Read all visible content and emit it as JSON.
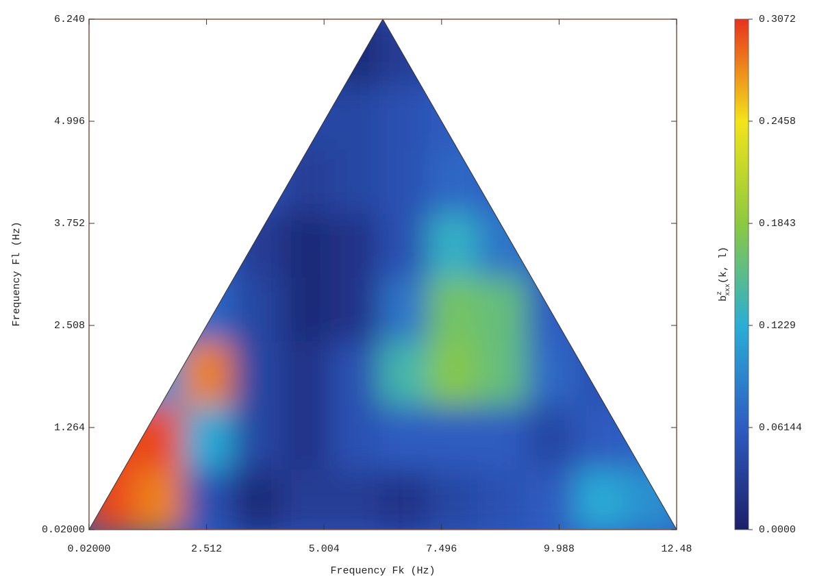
{
  "chart_data": {
    "type": "contour",
    "x_label": "Frequency Fk (Hz)",
    "y_label": "Frequency Fl (Hz)",
    "colorbar_label": {
      "base": "b",
      "sup": "z",
      "sub": "xxx",
      "args": "(k, l)"
    },
    "xlim": [
      0.02,
      12.48
    ],
    "ylim": [
      0.02,
      6.24
    ],
    "xticks": [
      {
        "value": 0.02,
        "label": "0.02000"
      },
      2.512,
      5.004,
      7.496,
      9.988,
      12.48
    ],
    "yticks": [
      {
        "value": 0.02,
        "label": "0.02000"
      },
      1.264,
      2.508,
      3.752,
      4.996,
      {
        "value": 6.24,
        "label": "6.240"
      }
    ],
    "zlim": [
      0,
      0.3072
    ],
    "zticks": [
      {
        "value": 0,
        "label": "0.0000"
      },
      0.06144,
      0.1229,
      0.1843,
      0.2458,
      0.3072
    ],
    "colormap": [
      "#1c1f6a",
      "#2e5cc2",
      "#2aaed6",
      "#8cc940",
      "#f3e41a",
      "#e8321e"
    ],
    "x": [
      0.54,
      1.58,
      2.62,
      3.66,
      4.7,
      5.74,
      6.78,
      7.82,
      8.86,
      9.9,
      10.94,
      11.98
    ],
    "y": [
      0.41,
      1.19,
      1.97,
      2.75,
      3.53,
      4.31,
      5.09,
      5.87
    ],
    "z": [
      [
        0.3,
        0.28,
        0.05,
        0.01,
        0.03,
        0.03,
        0.02,
        0.04,
        0.05,
        0.06,
        0.12,
        0.1
      ],
      [
        0.3,
        0.3,
        0.12,
        0.04,
        0.02,
        0.05,
        0.06,
        0.06,
        0.06,
        0.04,
        0.06,
        null
      ],
      [
        null,
        0.1,
        0.28,
        0.04,
        0.02,
        0.05,
        0.14,
        0.18,
        0.16,
        0.07,
        0.05,
        null
      ],
      [
        null,
        null,
        0.07,
        0.04,
        0.01,
        0.02,
        0.08,
        0.17,
        0.16,
        0.06,
        null,
        null
      ],
      [
        null,
        null,
        null,
        0.03,
        0.01,
        0.02,
        0.05,
        0.13,
        0.08,
        null,
        null,
        null
      ],
      [
        null,
        null,
        null,
        null,
        0.03,
        0.04,
        0.05,
        0.07,
        null,
        null,
        null,
        null
      ],
      [
        null,
        null,
        null,
        null,
        0.04,
        0.04,
        0.05,
        0.06,
        null,
        null,
        null,
        null
      ],
      [
        null,
        null,
        null,
        null,
        null,
        0.01,
        0.03,
        null,
        null,
        null,
        null,
        null
      ]
    ]
  }
}
